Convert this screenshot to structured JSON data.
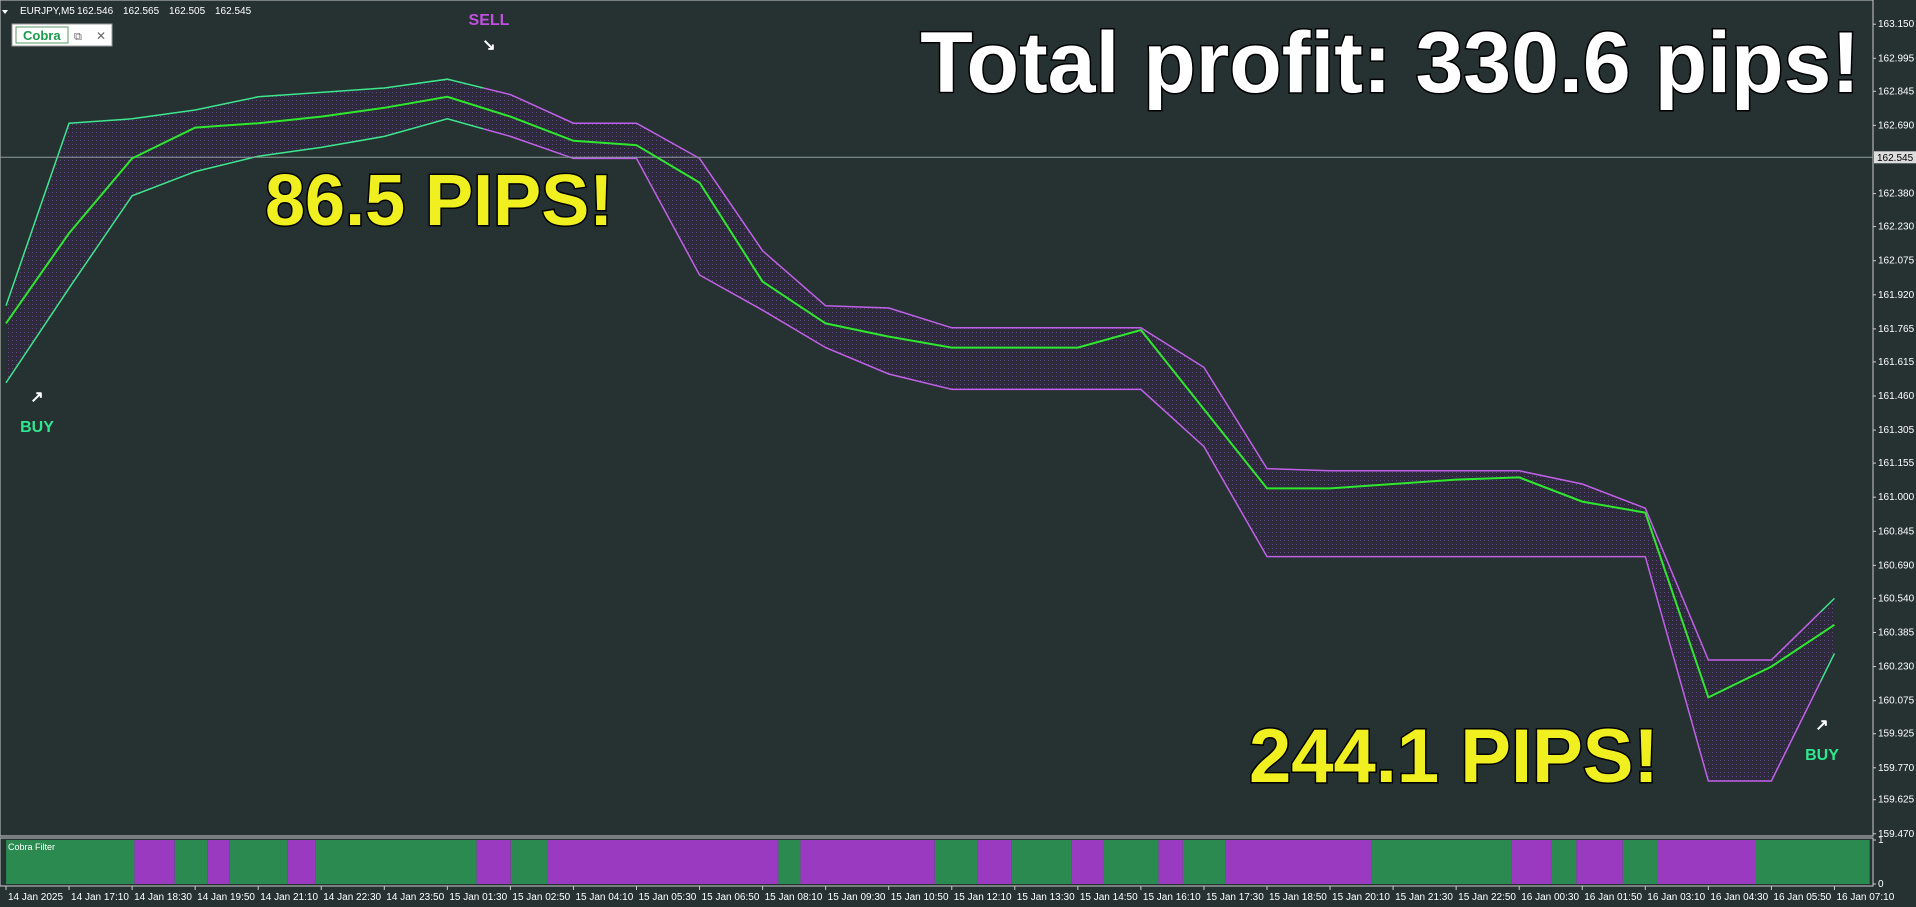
{
  "chart_data": {
    "type": "line",
    "symbol": "EURJPY,M5",
    "quote": [
      162.546,
      162.565,
      162.505,
      162.545
    ],
    "indicator_window": "Cobra",
    "headline": "Total profit: 330.6 pips!",
    "annotations": [
      "SELL",
      "BUY",
      "BUY",
      "86.5 PIPS!",
      "244.1 PIPS!"
    ],
    "categories": [
      "14 Jan 2025",
      "14 Jan 17:10",
      "14 Jan 18:30",
      "14 Jan 19:50",
      "14 Jan 21:10",
      "14 Jan 22:30",
      "14 Jan 23:50",
      "15 Jan 01:30",
      "15 Jan 02:50",
      "15 Jan 04:10",
      "15 Jan 05:30",
      "15 Jan 06:50",
      "15 Jan 08:10",
      "15 Jan 09:30",
      "15 Jan 10:50",
      "15 Jan 12:10",
      "15 Jan 13:30",
      "15 Jan 14:50",
      "15 Jan 16:10",
      "15 Jan 17:30",
      "15 Jan 18:50",
      "15 Jan 20:10",
      "15 Jan 21:30",
      "15 Jan 22:50",
      "16 Jan 00:30",
      "16 Jan 01:50",
      "16 Jan 03:10",
      "16 Jan 04:30",
      "16 Jan 05:50",
      "16 Jan 07:10"
    ],
    "price": {
      "color": "#2ee82e",
      "values": [
        161.79,
        162.2,
        162.54,
        162.68,
        162.7,
        162.73,
        162.77,
        162.82,
        162.73,
        162.62,
        162.6,
        162.43,
        161.98,
        161.79,
        161.73,
        161.68,
        161.68,
        161.68,
        161.76,
        161.4,
        161.04,
        161.04,
        161.06,
        161.08,
        161.09,
        160.98,
        160.93,
        160.09,
        160.23,
        160.42
      ]
    },
    "band": {
      "up_color": "#3ce68c",
      "down_color": "#c060e8",
      "upper": [
        161.87,
        162.7,
        162.72,
        162.76,
        162.82,
        162.84,
        162.86,
        162.9,
        162.83,
        162.7,
        162.7,
        162.54,
        162.12,
        161.87,
        161.86,
        161.77,
        161.77,
        161.77,
        161.77,
        161.59,
        161.13,
        161.12,
        161.12,
        161.12,
        161.12,
        161.06,
        160.95,
        160.26,
        160.26,
        160.54
      ],
      "lower": [
        161.52,
        161.95,
        162.37,
        162.48,
        162.55,
        162.59,
        162.64,
        162.72,
        162.64,
        162.54,
        162.54,
        162.01,
        161.85,
        161.68,
        161.56,
        161.49,
        161.49,
        161.49,
        161.49,
        161.23,
        160.73,
        160.73,
        160.73,
        160.73,
        160.73,
        160.73,
        160.73,
        159.71,
        159.71,
        160.29
      ]
    },
    "current_price": 162.545,
    "ylim": [
      159.46,
      163.26
    ],
    "yticks": [
      {
        "value": 163.15,
        "label": "163.150"
      },
      162.995,
      162.845,
      {
        "value": 162.69,
        "label": "162.690"
      },
      {
        "value": 162.38,
        "label": "162.380"
      },
      {
        "value": 162.23,
        "label": "162.230"
      },
      162.075,
      {
        "value": 161.92,
        "label": "161.920"
      },
      161.765,
      161.615,
      {
        "value": 161.46,
        "label": "161.460"
      },
      161.305,
      161.155,
      {
        "value": 161.0,
        "label": "161.000"
      },
      160.845,
      {
        "value": 160.69,
        "label": "160.690"
      },
      {
        "value": 160.54,
        "label": "160.540"
      },
      160.385,
      {
        "value": 160.23,
        "label": "160.230"
      },
      160.075,
      159.925,
      {
        "value": 159.77,
        "label": "159.770"
      },
      159.625,
      {
        "value": 159.47,
        "label": "159.470"
      }
    ],
    "indicator": {
      "title": "Cobra Filter",
      "ylim": [
        0,
        1
      ],
      "yticks": [
        0,
        1
      ]
    }
  }
}
